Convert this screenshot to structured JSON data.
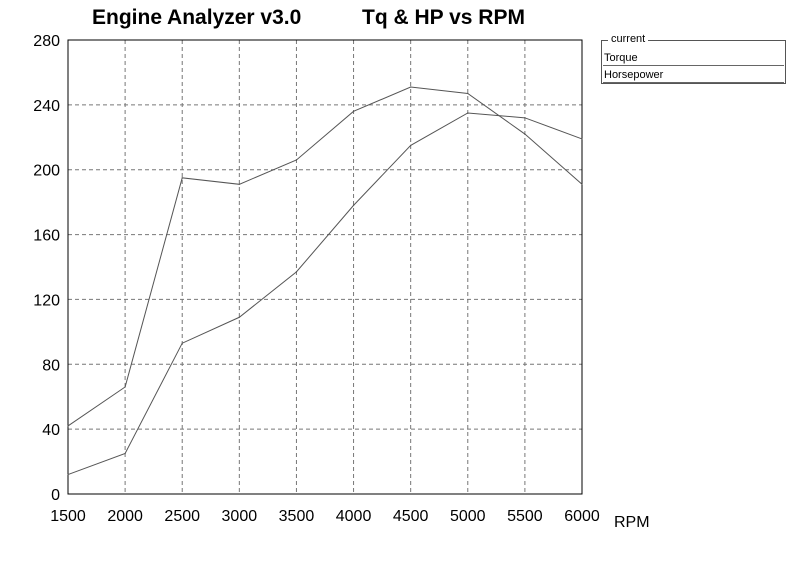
{
  "header": {
    "app_title": "Engine Analyzer v3.0",
    "chart_title": "Tq & HP vs RPM"
  },
  "legend": {
    "title": "current",
    "items": [
      "Torque",
      "Horsepower"
    ]
  },
  "colors": {
    "line": "#555555",
    "grid": "#777777",
    "axis": "#000000"
  },
  "chart_data": {
    "type": "line",
    "title": "Tq & HP vs RPM",
    "xlabel": "RPM",
    "ylabel": "",
    "x": [
      1500,
      2000,
      2500,
      3000,
      3500,
      4000,
      4500,
      5000,
      5500,
      6000
    ],
    "xlim": [
      1500,
      6000
    ],
    "ylim": [
      0,
      280
    ],
    "xticks": [
      "1500",
      "2000",
      "2500",
      "3000",
      "3500",
      "4000",
      "4500",
      "5000",
      "5500",
      "6000"
    ],
    "yticks": [
      "0",
      "40",
      "80",
      "120",
      "160",
      "200",
      "240",
      "280"
    ],
    "grid": true,
    "legend_position": "top-right",
    "series": [
      {
        "name": "Torque",
        "values": [
          42,
          66,
          195,
          191,
          206,
          236,
          251,
          247,
          222,
          191
        ]
      },
      {
        "name": "Horsepower",
        "values": [
          12,
          25,
          93,
          109,
          137,
          178,
          215,
          235,
          232,
          219
        ]
      }
    ]
  }
}
